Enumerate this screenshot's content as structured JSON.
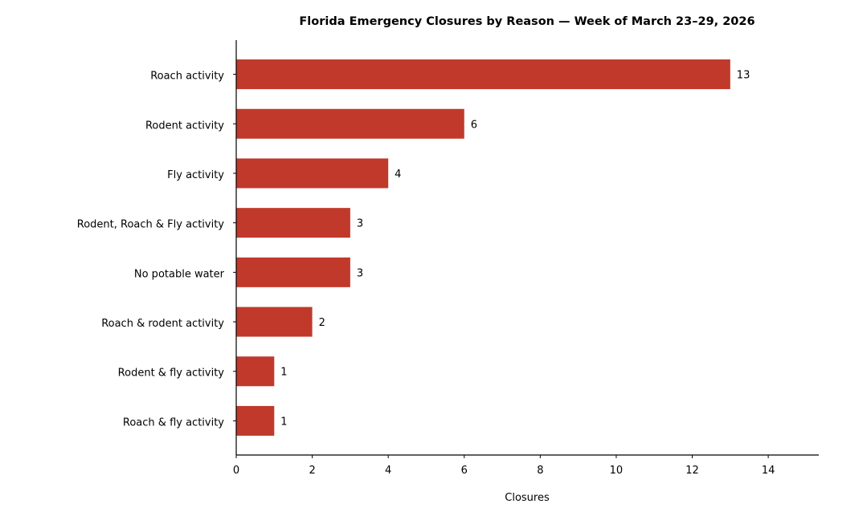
{
  "chart_data": {
    "type": "bar",
    "orientation": "horizontal",
    "title": "Florida Emergency Closures by Reason — Week of March 23–29, 2026",
    "xlabel": "Closures",
    "ylabel": "",
    "categories": [
      "Roach activity",
      "Rodent activity",
      "Fly activity",
      "Rodent, Roach & Fly activity",
      "No potable water",
      "Roach & rodent activity",
      "Rodent & fly activity",
      "Roach & fly activity"
    ],
    "values": [
      13,
      6,
      4,
      3,
      3,
      2,
      1,
      1
    ],
    "xlim": [
      0,
      15.33
    ],
    "xticks": [
      0,
      2,
      4,
      6,
      8,
      10,
      12,
      14
    ],
    "grid": false,
    "legend": "none",
    "bar_color": "#c0392b",
    "data_labels": true
  }
}
